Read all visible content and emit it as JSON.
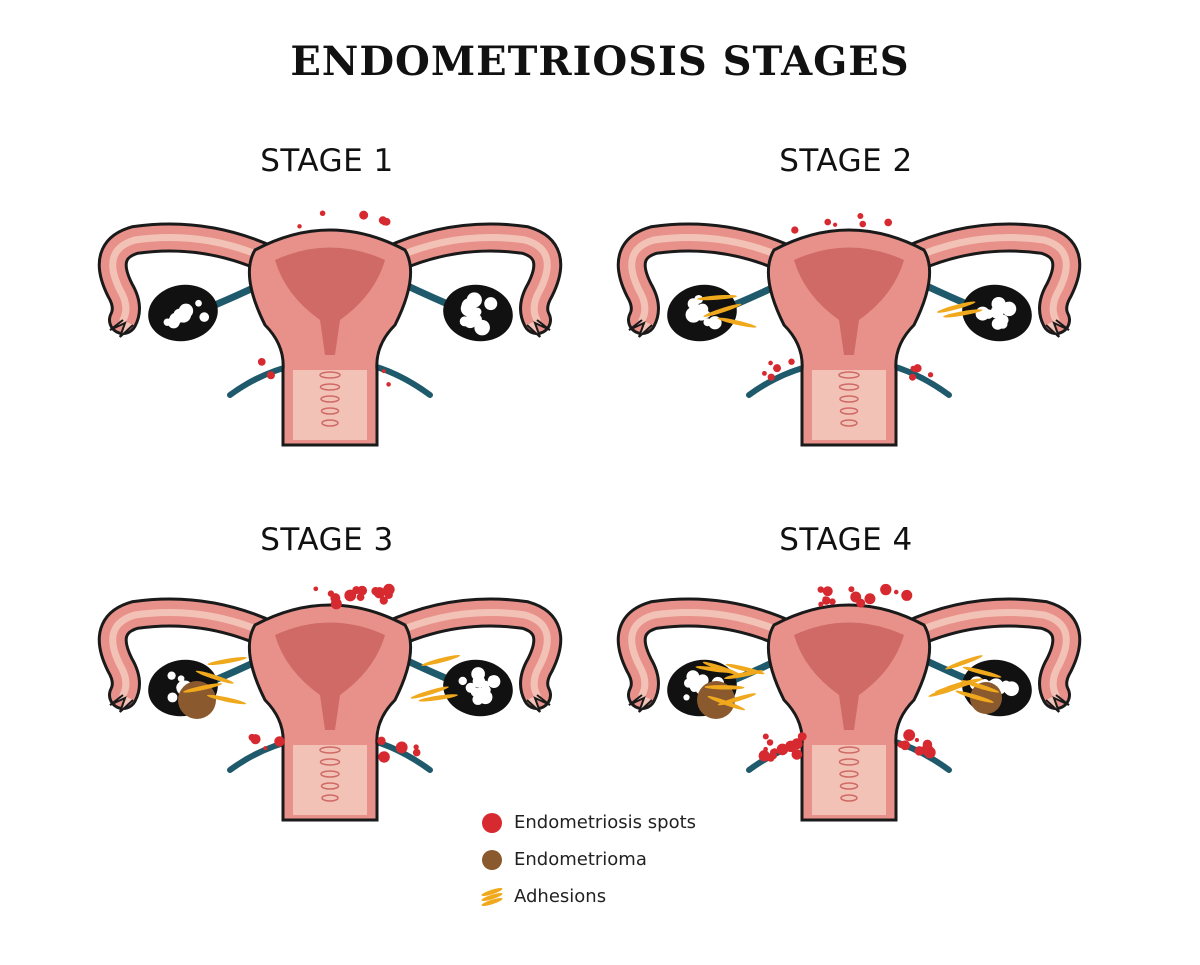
{
  "title": "ENDOMETRIOSIS STAGES",
  "stages": [
    {
      "label": "STAGE 1",
      "spots": "few",
      "endometrioma": false,
      "adhesions": "none"
    },
    {
      "label": "STAGE 2",
      "spots": "more",
      "endometrioma": false,
      "adhesions": "mild"
    },
    {
      "label": "STAGE 3",
      "spots": "many",
      "endometrioma": true,
      "adhesions": "moderate"
    },
    {
      "label": "STAGE 4",
      "spots": "extensive",
      "endometrioma": true,
      "adhesions": "severe"
    }
  ],
  "legend": [
    {
      "label": "Endometriosis spots",
      "icon": "red-dot",
      "color": "#d62a30"
    },
    {
      "label": "Endometrioma",
      "icon": "brown-dot",
      "color": "#8a5a2e"
    },
    {
      "label": "Adhesions",
      "icon": "yellow-strands",
      "color": "#f0a81c"
    }
  ],
  "colors": {
    "uterus": "#e8918a",
    "uterus_inner": "#cf6a66",
    "uterus_light": "#f3c2b6",
    "outline": "#1a1a1a",
    "ovary": "#111111",
    "ligament": "#1e5a6b"
  }
}
